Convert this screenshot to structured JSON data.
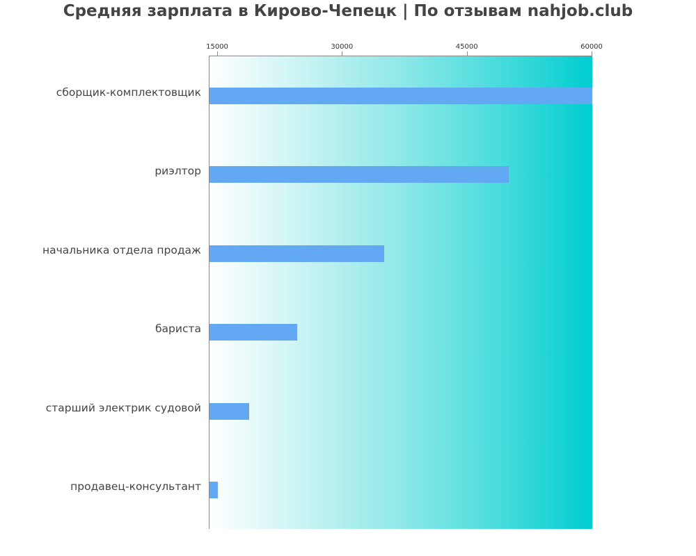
{
  "chart_data": {
    "type": "bar",
    "orientation": "horizontal",
    "title": "Средняя зарплата в Кирово-Чепецк | По отзывам nahjob.club",
    "xlabel": "",
    "ylabel": "",
    "categories": [
      "сборщик-комплектовщик",
      "риэлтор",
      "начальника отдела продаж",
      "бариста",
      "старший электрик судовой",
      "продавец-консультант"
    ],
    "values": [
      60000,
      50000,
      35000,
      24500,
      18750,
      15000
    ],
    "xlim": [
      14000,
      60000
    ],
    "x_ticks": [
      "15000",
      "30000",
      "45000",
      "60000"
    ],
    "x_axis_position": "top",
    "grid": false,
    "legend": null,
    "bar_color": "#63a8f2",
    "background_gradient": [
      "#ffffff",
      "#00cdd0"
    ]
  }
}
